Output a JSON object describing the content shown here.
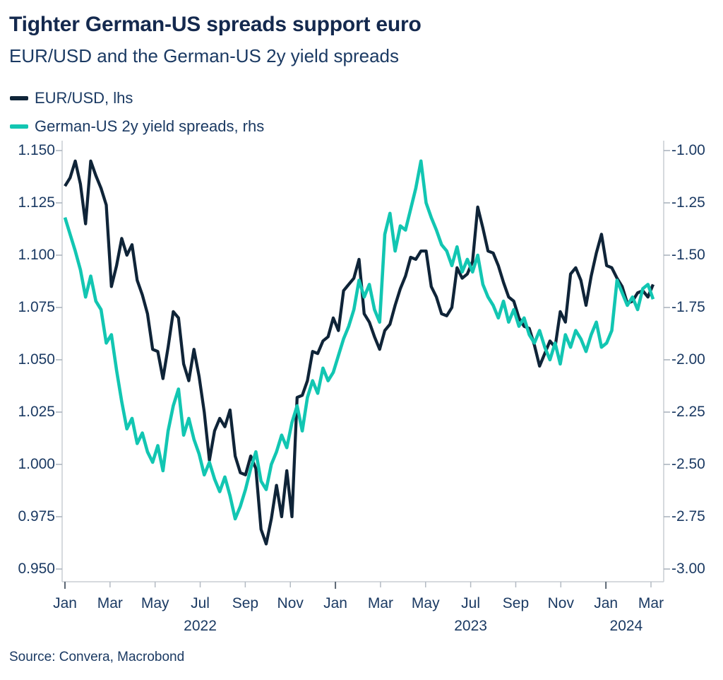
{
  "header": {
    "title": "Tighter German-US spreads support euro",
    "subtitle": "EUR/USD and the German-US 2y yield spreads"
  },
  "colors": {
    "title_text": "#14294E",
    "body_text": "#1B3A63",
    "eurusd_line": "#0F2438",
    "spread_line": "#12C6B2",
    "axis_line": "#C9CED4",
    "side_tick": "#A7B0BA",
    "month_tick": "#B3BAC3",
    "year_tick": "#5C6774",
    "background": "#FFFFFF"
  },
  "legend": {
    "items": [
      {
        "label": "EUR/USD, lhs",
        "color": "#0F2438"
      },
      {
        "label": "German-US 2y yield spreads, rhs",
        "color": "#12C6B2"
      }
    ]
  },
  "source": "Source: Convera, Macrobond",
  "chart_data": {
    "type": "line",
    "title": "Tighter German-US spreads support euro",
    "subtitle": "EUR/USD and the German-US 2y yield spreads",
    "frequency": "weekly",
    "x_start": "2022-01-03",
    "x_end": "2024-03-08",
    "grid": false,
    "legend_position": "top-left",
    "left_axis": {
      "label": "EUR/USD",
      "range": [
        0.95,
        1.15
      ],
      "ticks": [
        "1.150",
        "1.125",
        "1.100",
        "1.075",
        "1.050",
        "1.025",
        "1.000",
        "0.975",
        "0.950"
      ]
    },
    "right_axis": {
      "label": "German-US 2y yield spread, %",
      "range": [
        -3.0,
        -1.0
      ],
      "ticks": [
        "-1.00",
        "-1.25",
        "-1.50",
        "-1.75",
        "-2.00",
        "-2.25",
        "-2.50",
        "-2.75",
        "-3.00"
      ]
    },
    "x_axis": {
      "month_labels": [
        "Jan",
        "Mar",
        "May",
        "Jul",
        "Sep",
        "Nov",
        "Jan",
        "Mar",
        "May",
        "Jul",
        "Sep",
        "Nov",
        "Jan",
        "Mar"
      ],
      "year_labels": [
        {
          "label": "2022",
          "center_month": 6.0
        },
        {
          "label": "2023",
          "center_month": 18.0
        },
        {
          "label": "2024",
          "center_month": 24.9
        }
      ]
    },
    "series": [
      {
        "name": "EUR/USD, lhs",
        "axis": "left",
        "color": "#0F2438",
        "values": [
          1.133,
          1.137,
          1.145,
          1.134,
          1.115,
          1.145,
          1.138,
          1.132,
          1.124,
          1.085,
          1.095,
          1.108,
          1.1,
          1.105,
          1.088,
          1.081,
          1.072,
          1.055,
          1.054,
          1.041,
          1.056,
          1.073,
          1.07,
          1.048,
          1.04,
          1.055,
          1.042,
          1.025,
          1.002,
          1.016,
          1.022,
          1.018,
          1.026,
          1.004,
          0.996,
          0.995,
          1.004,
          0.998,
          0.969,
          0.962,
          0.974,
          0.99,
          0.975,
          0.997,
          0.975,
          1.032,
          1.033,
          1.04,
          1.054,
          1.053,
          1.059,
          1.061,
          1.07,
          1.064,
          1.083,
          1.086,
          1.089,
          1.098,
          1.072,
          1.068,
          1.061,
          1.055,
          1.064,
          1.067,
          1.076,
          1.084,
          1.09,
          1.099,
          1.098,
          1.102,
          1.102,
          1.085,
          1.08,
          1.072,
          1.071,
          1.075,
          1.094,
          1.089,
          1.091,
          1.097,
          1.123,
          1.113,
          1.102,
          1.101,
          1.095,
          1.087,
          1.08,
          1.078,
          1.07,
          1.066,
          1.065,
          1.057,
          1.047,
          1.053,
          1.059,
          1.056,
          1.073,
          1.068,
          1.091,
          1.094,
          1.088,
          1.076,
          1.09,
          1.101,
          1.11,
          1.095,
          1.094,
          1.089,
          1.085,
          1.077,
          1.078,
          1.082,
          1.083,
          1.08,
          1.086
        ]
      },
      {
        "name": "German-US 2y yield spreads, rhs",
        "axis": "right",
        "color": "#12C6B2",
        "values": [
          -1.32,
          -1.4,
          -1.48,
          -1.57,
          -1.7,
          -1.6,
          -1.72,
          -1.76,
          -1.92,
          -1.88,
          -2.05,
          -2.2,
          -2.33,
          -2.28,
          -2.4,
          -2.35,
          -2.44,
          -2.49,
          -2.41,
          -2.53,
          -2.34,
          -2.22,
          -2.14,
          -2.36,
          -2.28,
          -2.38,
          -2.45,
          -2.55,
          -2.49,
          -2.57,
          -2.63,
          -2.56,
          -2.65,
          -2.76,
          -2.7,
          -2.62,
          -2.52,
          -2.44,
          -2.58,
          -2.62,
          -2.5,
          -2.44,
          -2.36,
          -2.42,
          -2.3,
          -2.22,
          -2.34,
          -2.18,
          -2.1,
          -2.16,
          -2.04,
          -2.1,
          -2.06,
          -1.98,
          -1.9,
          -1.84,
          -1.76,
          -1.62,
          -1.7,
          -1.64,
          -1.76,
          -1.82,
          -1.4,
          -1.3,
          -1.48,
          -1.36,
          -1.38,
          -1.28,
          -1.18,
          -1.05,
          -1.25,
          -1.32,
          -1.38,
          -1.45,
          -1.48,
          -1.55,
          -1.46,
          -1.58,
          -1.52,
          -1.58,
          -1.5,
          -1.64,
          -1.7,
          -1.74,
          -1.8,
          -1.72,
          -1.82,
          -1.76,
          -1.84,
          -1.8,
          -1.88,
          -1.92,
          -1.86,
          -1.94,
          -2.0,
          -1.92,
          -2.02,
          -1.88,
          -1.94,
          -1.86,
          -1.9,
          -1.96,
          -1.88,
          -1.82,
          -1.94,
          -1.92,
          -1.86,
          -1.62,
          -1.68,
          -1.74,
          -1.7,
          -1.76,
          -1.66,
          -1.64,
          -1.71
        ]
      }
    ]
  }
}
